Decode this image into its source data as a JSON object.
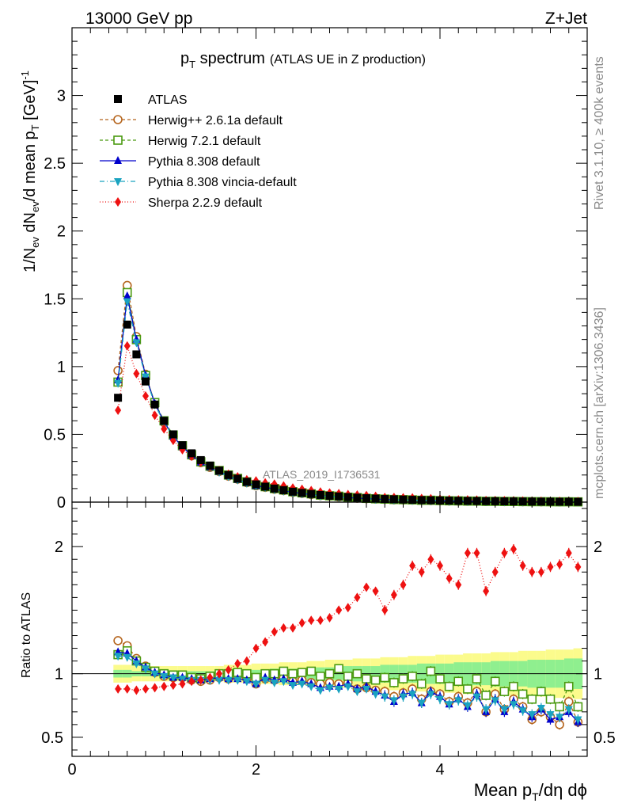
{
  "header": {
    "left": "13000 GeV pp",
    "right": "Z+Jet"
  },
  "side": {
    "rivet": "Rivet 3.1.10, ≥ 400k events",
    "mcplots": "mcplots.cern.ch [arXiv:1306.3436]"
  },
  "chart_data": {
    "type": "scatter",
    "title_main": "p",
    "title_sub": "T",
    "title_rest": " spectrum",
    "title_extra": "(ATLAS UE in Z production)",
    "analysis_label": "ATLAS_2019_I1736531",
    "xlabel": {
      "a": "Mean p",
      "sub": "T",
      "b": "/dη dϕ"
    },
    "ylabel": {
      "a": "1/N",
      "sub1": "ev",
      "b": " dN",
      "sub2": "ev",
      "c": "/d mean p",
      "sub3": "T",
      "d": " [GeV]",
      "sup": "-1"
    },
    "ratio_ylabel": "Ratio to ATLAS",
    "xlim": [
      0,
      5.6
    ],
    "ylim_main": [
      0,
      3.5
    ],
    "ylim_ratio": [
      0.35,
      2.35
    ],
    "x_ticks": [
      "0",
      "2",
      "4"
    ],
    "y_ticks_main": [
      "0",
      "0.5",
      "1",
      "1.5",
      "2",
      "2.5",
      "3"
    ],
    "y_ticks_ratio": [
      "0.5",
      "1",
      "2"
    ],
    "x": [
      0.5,
      0.6,
      0.7,
      0.8,
      0.9,
      1.0,
      1.1,
      1.2,
      1.3,
      1.4,
      1.5,
      1.6,
      1.7,
      1.8,
      1.9,
      2.0,
      2.1,
      2.2,
      2.3,
      2.4,
      2.5,
      2.6,
      2.7,
      2.8,
      2.9,
      3.0,
      3.1,
      3.2,
      3.3,
      3.4,
      3.5,
      3.6,
      3.7,
      3.8,
      3.9,
      4.0,
      4.1,
      4.2,
      4.3,
      4.4,
      4.5,
      4.6,
      4.7,
      4.8,
      4.9,
      5.0,
      5.1,
      5.2,
      5.3,
      5.4,
      5.5
    ],
    "atlas": [
      0.77,
      1.31,
      1.09,
      0.89,
      0.72,
      0.6,
      0.5,
      0.42,
      0.36,
      0.31,
      0.27,
      0.233,
      0.2,
      0.173,
      0.15,
      0.131,
      0.114,
      0.1,
      0.088,
      0.077,
      0.068,
      0.06,
      0.053,
      0.047,
      0.042,
      0.037,
      0.033,
      0.029,
      0.026,
      0.023,
      0.021,
      0.019,
      0.017,
      0.015,
      0.0135,
      0.012,
      0.011,
      0.0098,
      0.0088,
      0.0079,
      0.0071,
      0.0064,
      0.0058,
      0.0052,
      0.0047,
      0.0042,
      0.0038,
      0.0034,
      0.0031,
      0.0028,
      0.0025
    ],
    "band_yellow": [
      0.07,
      0.07,
      0.06,
      0.06,
      0.06,
      0.06,
      0.06,
      0.06,
      0.06,
      0.06,
      0.06,
      0.06,
      0.07,
      0.07,
      0.07,
      0.08,
      0.08,
      0.08,
      0.09,
      0.09,
      0.09,
      0.1,
      0.1,
      0.11,
      0.11,
      0.11,
      0.12,
      0.12,
      0.12,
      0.13,
      0.13,
      0.13,
      0.14,
      0.14,
      0.14,
      0.15,
      0.15,
      0.15,
      0.16,
      0.16,
      0.16,
      0.17,
      0.17,
      0.17,
      0.18,
      0.18,
      0.18,
      0.19,
      0.19,
      0.19,
      0.2
    ],
    "band_green": [
      0.03,
      0.03,
      0.02,
      0.02,
      0.02,
      0.02,
      0.02,
      0.02,
      0.02,
      0.02,
      0.02,
      0.02,
      0.03,
      0.03,
      0.03,
      0.03,
      0.03,
      0.04,
      0.04,
      0.04,
      0.04,
      0.05,
      0.05,
      0.05,
      0.05,
      0.06,
      0.06,
      0.06,
      0.06,
      0.07,
      0.07,
      0.07,
      0.07,
      0.08,
      0.08,
      0.08,
      0.08,
      0.09,
      0.09,
      0.09,
      0.09,
      0.1,
      0.1,
      0.1,
      0.1,
      0.11,
      0.11,
      0.11,
      0.11,
      0.12,
      0.12
    ],
    "series": [
      {
        "name": "Herwig++ 2.6.1a default",
        "color": "#b5651d",
        "marker": "circle",
        "dash": "4,3",
        "ratio": [
          1.26,
          1.22,
          1.12,
          1.06,
          1.01,
          0.98,
          0.97,
          0.97,
          0.95,
          0.94,
          0.95,
          0.97,
          0.96,
          0.98,
          0.96,
          0.92,
          0.96,
          0.95,
          0.97,
          0.94,
          0.95,
          0.93,
          0.92,
          0.93,
          0.92,
          0.93,
          0.88,
          0.89,
          0.87,
          0.86,
          0.82,
          0.85,
          0.88,
          0.8,
          0.86,
          0.84,
          0.78,
          0.82,
          0.77,
          0.86,
          0.7,
          0.84,
          0.72,
          0.8,
          0.74,
          0.64,
          0.7,
          0.66,
          0.6,
          0.78,
          0.62
        ]
      },
      {
        "name": "Herwig 7.2.1 default",
        "color": "#4a9a10",
        "marker": "square",
        "dash": "4,3",
        "ratio": [
          1.15,
          1.18,
          1.1,
          1.05,
          1.02,
          1.0,
          0.99,
          0.99,
          0.97,
          0.96,
          0.98,
          1.0,
          1.0,
          1.01,
          1.0,
          0.97,
          1.0,
          1.0,
          1.02,
          1.0,
          1.01,
          1.02,
          0.98,
          1.0,
          1.04,
          0.98,
          1.0,
          0.96,
          0.95,
          0.97,
          0.93,
          0.96,
          0.98,
          0.92,
          1.02,
          0.96,
          0.9,
          0.94,
          0.88,
          0.96,
          0.83,
          0.94,
          0.86,
          0.9,
          0.84,
          0.8,
          0.86,
          0.8,
          0.74,
          0.9,
          0.74
        ]
      },
      {
        "name": "Pythia 8.308 default",
        "color": "#0000cc",
        "marker": "triangle-up",
        "dash": "none",
        "ratio": [
          1.17,
          1.16,
          1.1,
          1.05,
          1.01,
          0.99,
          0.97,
          0.97,
          0.96,
          0.95,
          0.96,
          0.97,
          0.96,
          0.96,
          0.95,
          0.92,
          0.97,
          0.95,
          0.96,
          0.93,
          0.94,
          0.92,
          0.89,
          0.9,
          0.9,
          0.92,
          0.88,
          0.9,
          0.86,
          0.83,
          0.78,
          0.84,
          0.85,
          0.77,
          0.86,
          0.82,
          0.76,
          0.8,
          0.74,
          0.84,
          0.7,
          0.8,
          0.7,
          0.78,
          0.72,
          0.66,
          0.72,
          0.64,
          0.66,
          0.7,
          0.62
        ]
      },
      {
        "name": "Pythia 8.308 vincia-default",
        "color": "#1aa3c0",
        "marker": "triangle-down",
        "dash": "6,3,1,3",
        "ratio": [
          1.14,
          1.13,
          1.08,
          1.04,
          1.0,
          0.98,
          0.97,
          0.96,
          0.95,
          0.95,
          0.95,
          0.95,
          0.95,
          0.95,
          0.94,
          0.92,
          0.95,
          0.93,
          0.94,
          0.91,
          0.92,
          0.9,
          0.87,
          0.89,
          0.88,
          0.9,
          0.86,
          0.88,
          0.84,
          0.82,
          0.79,
          0.82,
          0.84,
          0.77,
          0.84,
          0.8,
          0.76,
          0.79,
          0.75,
          0.82,
          0.72,
          0.79,
          0.72,
          0.76,
          0.71,
          0.68,
          0.73,
          0.68,
          0.66,
          0.72,
          0.64
        ]
      },
      {
        "name": "Sherpa 2.2.9 default",
        "color": "#ee1111",
        "marker": "diamond",
        "dash": "1,2.5",
        "ratio": [
          0.88,
          0.88,
          0.87,
          0.88,
          0.89,
          0.9,
          0.91,
          0.92,
          0.94,
          0.95,
          0.97,
          1.0,
          1.03,
          1.08,
          1.1,
          1.2,
          1.25,
          1.33,
          1.36,
          1.36,
          1.4,
          1.42,
          1.42,
          1.44,
          1.5,
          1.52,
          1.6,
          1.68,
          1.65,
          1.5,
          1.62,
          1.7,
          1.85,
          1.8,
          1.9,
          1.85,
          1.75,
          1.7,
          1.95,
          1.95,
          1.65,
          1.8,
          1.95,
          1.98,
          1.85,
          1.8,
          1.8,
          1.84,
          1.86,
          1.95,
          1.84
        ]
      }
    ],
    "legend": {
      "data_label": "ATLAS",
      "placement": "top-left"
    }
  }
}
